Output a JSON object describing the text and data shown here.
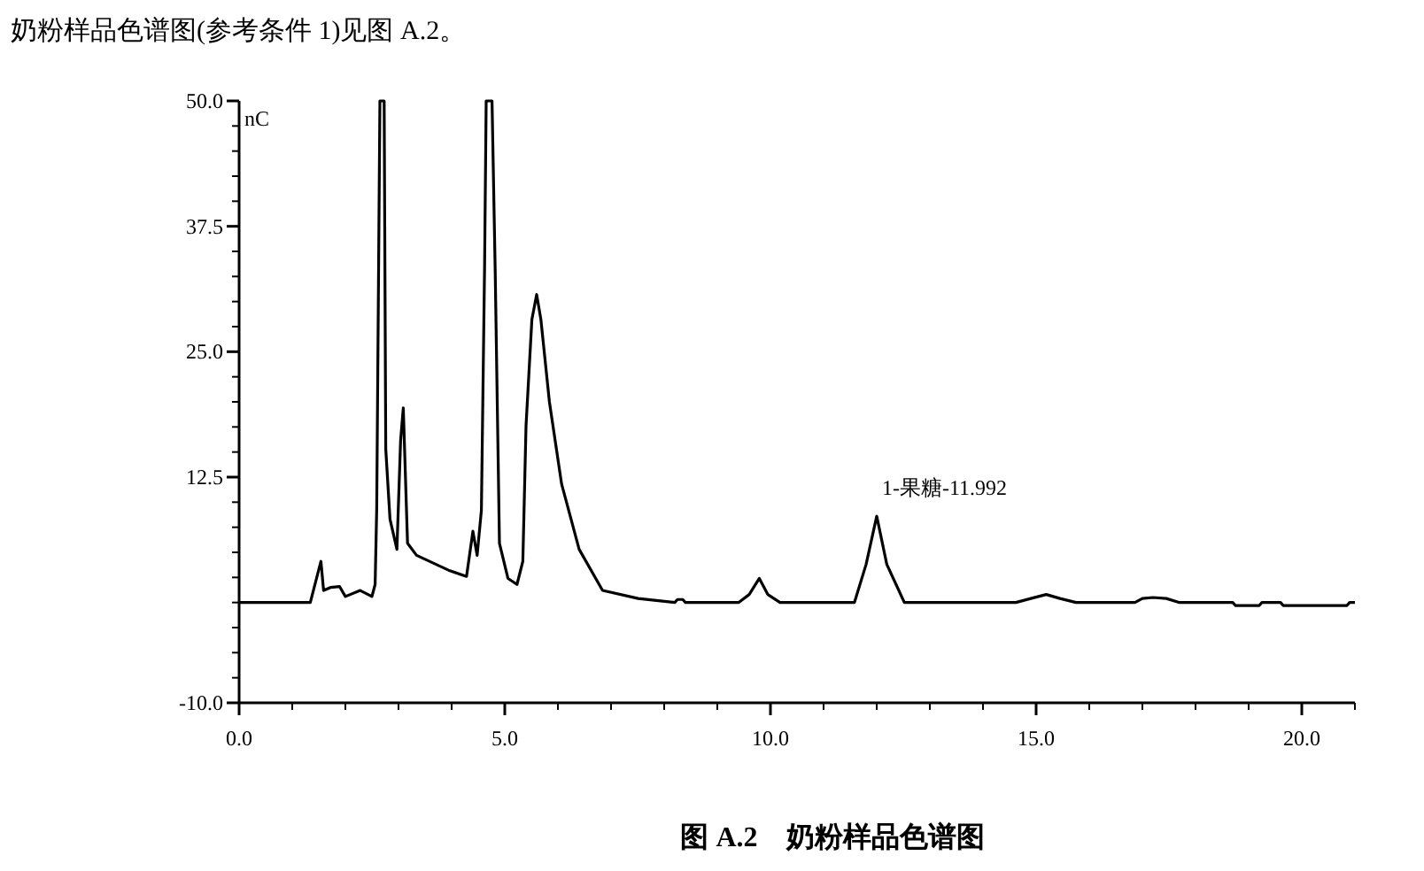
{
  "chart_data": {
    "type": "line",
    "title": "图 A.2　奶粉样品色谱图",
    "ylabel": "nC",
    "annotations": [
      "奶粉样品色谱图(参考条件 1)见图 A.2。",
      {
        "text": "1-果糖-11.992",
        "x": 12.0,
        "y": 8.6
      }
    ],
    "series": [
      {
        "color": "#000000",
        "x": [
          0,
          1.34,
          1.54,
          1.59,
          1.72,
          1.89,
          2.0,
          2.28,
          2.5,
          2.56,
          2.59,
          2.65,
          2.73,
          2.76,
          2.84,
          2.97,
          3.04,
          3.09,
          3.17,
          3.34,
          3.95,
          4.28,
          4.4,
          4.48,
          4.56,
          4.62,
          4.65,
          4.76,
          4.82,
          4.9,
          5.06,
          5.23,
          5.34,
          5.4,
          5.51,
          5.6,
          5.68,
          5.84,
          6.07,
          6.4,
          6.84,
          7.51,
          8.2,
          8.25,
          8.35,
          8.4,
          9.4,
          9.6,
          9.79,
          9.95,
          10.18,
          11.58,
          11.8,
          12.0,
          12.19,
          12.52,
          12.95,
          14.62,
          14.9,
          15.19,
          15.45,
          15.75,
          16.86,
          17.0,
          17.2,
          17.45,
          17.7,
          18.7,
          18.75,
          19.2,
          19.25,
          19.6,
          19.65,
          20.85,
          20.9,
          21.0
        ],
        "values": [
          0,
          0,
          4.1,
          1.2,
          1.5,
          1.6,
          0.6,
          1.2,
          0.6,
          1.8,
          9.4,
          50,
          50,
          15.3,
          8.3,
          5.3,
          16.2,
          19.4,
          5.9,
          4.7,
          3.2,
          2.6,
          7.1,
          4.7,
          9.2,
          33.5,
          50,
          50,
          33,
          5.9,
          2.4,
          1.8,
          4.1,
          17.6,
          28.2,
          30.7,
          28.2,
          20,
          11.8,
          5.3,
          1.2,
          0.4,
          0,
          0.3,
          0.3,
          0,
          0,
          0.8,
          2.4,
          0.8,
          0,
          0,
          3.8,
          8.6,
          3.8,
          0,
          0,
          0,
          0.4,
          0.8,
          0.4,
          0,
          0,
          0.4,
          0.5,
          0.4,
          0,
          0,
          -0.3,
          -0.3,
          0,
          0,
          -0.3,
          -0.3,
          0,
          0
        ]
      }
    ],
    "xlim": [
      0,
      21
    ],
    "ylim": [
      -10,
      50
    ],
    "xticks": [
      {
        "value": 0,
        "label": "0.0"
      },
      {
        "value": 1,
        "label": null
      },
      {
        "value": 2,
        "label": null
      },
      {
        "value": 3,
        "label": null
      },
      {
        "value": 4,
        "label": null
      },
      {
        "value": 5,
        "label": "5.0"
      },
      {
        "value": 6,
        "label": null
      },
      {
        "value": 7,
        "label": null
      },
      {
        "value": 8,
        "label": null
      },
      {
        "value": 9,
        "label": null
      },
      {
        "value": 10,
        "label": "10.0"
      },
      {
        "value": 11,
        "label": null
      },
      {
        "value": 12,
        "label": null
      },
      {
        "value": 13,
        "label": null
      },
      {
        "value": 14,
        "label": null
      },
      {
        "value": 15,
        "label": "15.0"
      },
      {
        "value": 16,
        "label": null
      },
      {
        "value": 17,
        "label": null
      },
      {
        "value": 18,
        "label": null
      },
      {
        "value": 19,
        "label": null
      },
      {
        "value": 20,
        "label": "20.0"
      },
      {
        "value": 21,
        "label": null
      }
    ],
    "yticks": [
      {
        "value": -10,
        "label": "-10.0"
      },
      {
        "value": -7.5,
        "label": null
      },
      {
        "value": -5,
        "label": null
      },
      {
        "value": -2.5,
        "label": null
      },
      {
        "value": 0,
        "label": null
      },
      {
        "value": 2.5,
        "label": null
      },
      {
        "value": 5,
        "label": null
      },
      {
        "value": 7.5,
        "label": null
      },
      {
        "value": 10,
        "label": null
      },
      {
        "value": 12.5,
        "label": "12.5"
      },
      {
        "value": 15,
        "label": null
      },
      {
        "value": 17.5,
        "label": null
      },
      {
        "value": 20,
        "label": null
      },
      {
        "value": 22.5,
        "label": null
      },
      {
        "value": 25,
        "label": "25.0"
      },
      {
        "value": 27.5,
        "label": null
      },
      {
        "value": 30,
        "label": null
      },
      {
        "value": 32.5,
        "label": null
      },
      {
        "value": 35,
        "label": null
      },
      {
        "value": 37.5,
        "label": "37.5"
      },
      {
        "value": 40,
        "label": null
      },
      {
        "value": 42.5,
        "label": null
      },
      {
        "value": 45,
        "label": null
      },
      {
        "value": 47.5,
        "label": null
      },
      {
        "value": 50,
        "label": "50.0"
      }
    ],
    "grid": false,
    "marker": "none",
    "line_style": "solid"
  }
}
